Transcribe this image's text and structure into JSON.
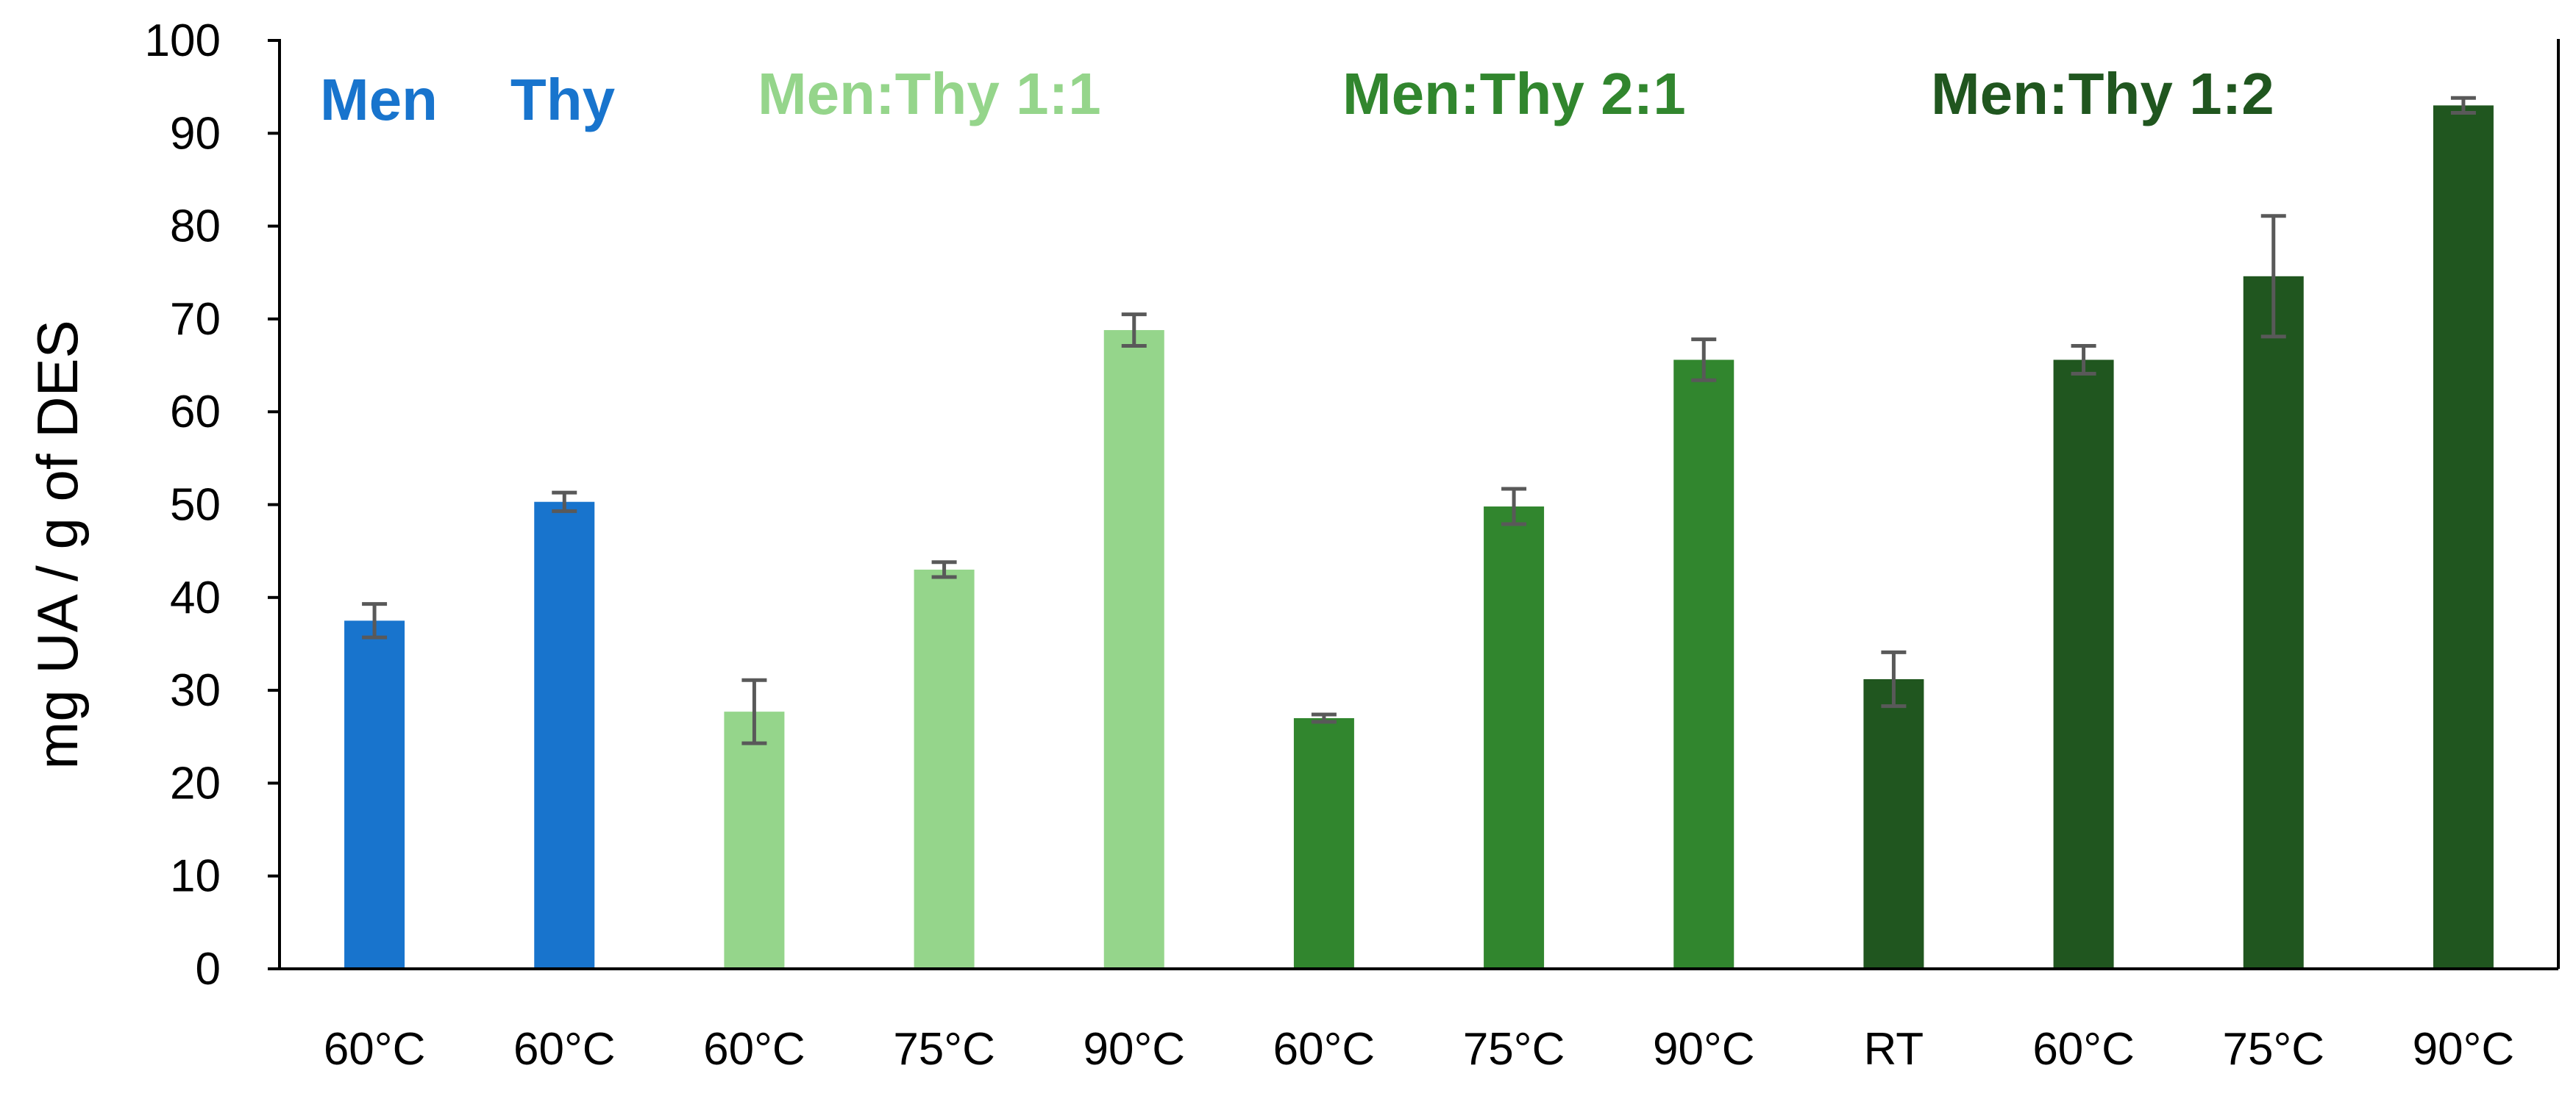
{
  "chart_data": {
    "type": "bar",
    "title": "",
    "xlabel": "",
    "ylabel": "mg UA / g of DES",
    "ylim": [
      0,
      100
    ],
    "yticks": [
      0,
      10,
      20,
      30,
      40,
      50,
      60,
      70,
      80,
      90,
      100
    ],
    "grid": false,
    "legend": "none",
    "categories": [
      "60°C",
      "60°C",
      "60°C",
      "75°C",
      "90°C",
      "60°C",
      "75°C",
      "90°C",
      "RT",
      "60°C",
      "75°C",
      "90°C"
    ],
    "values": [
      37.5,
      50.3,
      27.7,
      43.0,
      68.8,
      27.0,
      49.8,
      65.6,
      31.2,
      65.6,
      74.6,
      93.0
    ],
    "errors": [
      1.8,
      1.0,
      3.4,
      0.8,
      1.7,
      0.4,
      1.9,
      2.2,
      2.9,
      1.5,
      6.5,
      0.8
    ],
    "bar_groups": [
      0,
      1,
      2,
      2,
      2,
      3,
      3,
      3,
      4,
      4,
      4,
      4
    ],
    "groups": [
      {
        "name": "Men",
        "color": "#1874CD"
      },
      {
        "name": "Thy",
        "color": "#1874CD"
      },
      {
        "name": "Men:Thy 1:1",
        "color": "#95D58B"
      },
      {
        "name": "Men:Thy 2:1",
        "color": "#31862E"
      },
      {
        "name": "Men:Thy 1:2",
        "color": "#20561F"
      }
    ],
    "error_bar_color": "#595959",
    "axis_color": "#000000"
  }
}
